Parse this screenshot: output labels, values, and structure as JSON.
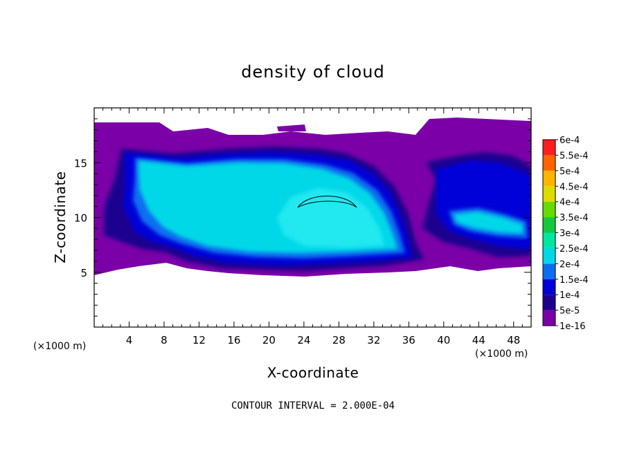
{
  "chart_data": {
    "type": "heatmap",
    "title": "density of cloud",
    "xlabel": "X-coordinate",
    "ylabel": "Z-coordinate",
    "x_unit_left": "(×1000 m)",
    "x_unit_right": "(×1000 m)",
    "xlim": [
      0,
      50
    ],
    "ylim": [
      0,
      20
    ],
    "x_ticks": [
      4,
      8,
      12,
      16,
      20,
      24,
      28,
      32,
      36,
      40,
      44,
      48
    ],
    "y_ticks": [
      5,
      10,
      15
    ],
    "footnote": "CONTOUR INTERVAL = 2.000E-04",
    "colorbar": {
      "labels": [
        "1e-16",
        "5e-5",
        "1e-4",
        "1.5e-4",
        "2e-4",
        "2.5e-4",
        "3e-4",
        "3.5e-4",
        "4e-4",
        "4.5e-4",
        "5e-4",
        "5.5e-4",
        "6e-4"
      ],
      "colors": [
        "#7b00a8",
        "#1e0090",
        "#0000d8",
        "#0a6ef0",
        "#00d8e8",
        "#00e8a0",
        "#14c83c",
        "#64dc00",
        "#dcdc00",
        "#ffb400",
        "#ff6400",
        "#ff1e1e",
        "#ff8c8c"
      ]
    },
    "levels": {
      "outer": "#7b00a8",
      "dark_blue": "#1e0090",
      "blue": "#0000d8",
      "mid_blue": "#0a6ef0",
      "cyan": "#00d8e8",
      "light_cyan": "#20e8f0"
    }
  }
}
